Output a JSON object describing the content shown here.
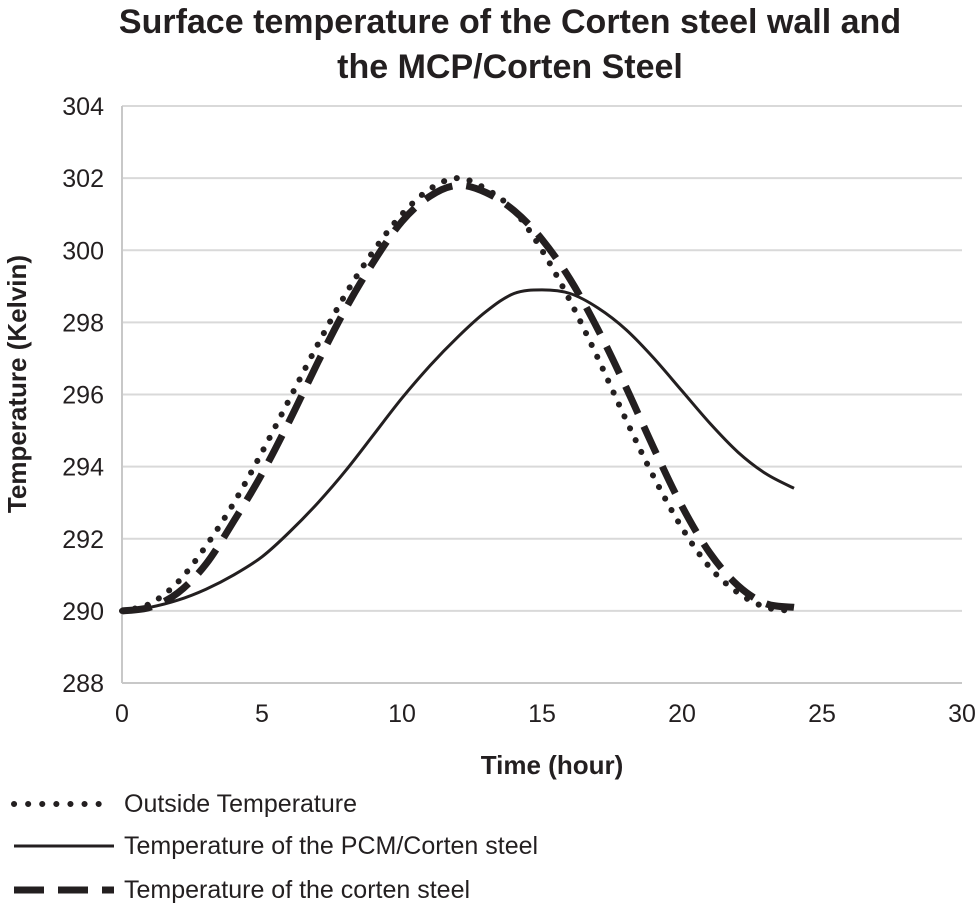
{
  "chart_data": {
    "type": "line",
    "title_line1": "Surface temperature of the Corten steel wall and",
    "title_line2": "the MCP/Corten Steel",
    "xlabel": "Time (hour)",
    "ylabel": "Temperature (Kelvin)",
    "xlim": [
      0,
      30
    ],
    "ylim": [
      288,
      304
    ],
    "x_ticks": [
      0,
      5,
      10,
      15,
      20,
      25,
      30
    ],
    "y_ticks": [
      288,
      290,
      292,
      294,
      296,
      298,
      300,
      302,
      304
    ],
    "grid": "horizontal",
    "legend_position": "bottom",
    "series": [
      {
        "name": "Outside Temperature",
        "style": "dotted",
        "x": [
          0,
          1,
          2,
          3,
          4,
          5,
          6,
          7,
          8,
          9,
          10,
          11,
          12,
          13,
          14,
          15,
          16,
          17,
          18,
          19,
          20,
          21,
          22,
          23,
          24
        ],
        "y": [
          290.0,
          290.2,
          290.8,
          291.8,
          293.0,
          294.4,
          295.9,
          297.4,
          298.8,
          300.0,
          301.0,
          301.7,
          302.0,
          301.7,
          301.1,
          300.0,
          298.6,
          297.0,
          295.3,
          293.7,
          292.3,
          291.2,
          290.5,
          290.1,
          290.0
        ]
      },
      {
        "name": "Temperature of the PCM/Corten steel",
        "style": "solid",
        "x": [
          0,
          1,
          2,
          3,
          4,
          5,
          6,
          7,
          8,
          9,
          10,
          11,
          12,
          13,
          14,
          15,
          16,
          17,
          18,
          19,
          20,
          21,
          22,
          23,
          24
        ],
        "y": [
          290.0,
          290.1,
          290.3,
          290.6,
          291.0,
          291.5,
          292.2,
          293.0,
          293.9,
          294.9,
          295.9,
          296.8,
          297.6,
          298.3,
          298.8,
          298.9,
          298.8,
          298.4,
          297.8,
          297.0,
          296.1,
          295.2,
          294.4,
          293.8,
          293.4
        ]
      },
      {
        "name": "Temperature of the corten steel",
        "style": "dashed",
        "x": [
          0,
          1,
          2,
          3,
          4,
          5,
          6,
          7,
          8,
          9,
          10,
          11,
          12,
          13,
          14,
          15,
          16,
          17,
          18,
          19,
          20,
          21,
          22,
          23,
          24
        ],
        "y": [
          290.0,
          290.1,
          290.5,
          291.3,
          292.5,
          293.8,
          295.3,
          296.9,
          298.4,
          299.7,
          300.8,
          301.5,
          301.8,
          301.6,
          301.1,
          300.3,
          299.2,
          297.8,
          296.2,
          294.5,
          292.9,
          291.6,
          290.7,
          290.2,
          290.1
        ]
      }
    ]
  }
}
